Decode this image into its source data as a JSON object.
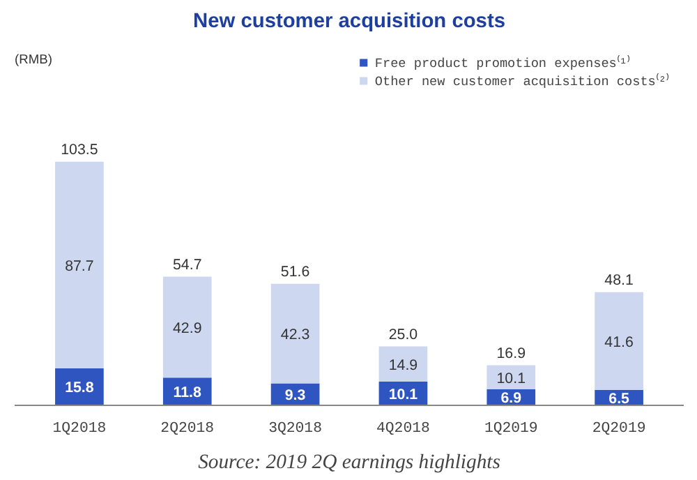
{
  "chart_data": {
    "type": "bar",
    "title": "New customer acquisition costs",
    "categories": [
      "1Q2018",
      "2Q2018",
      "3Q2018",
      "4Q2018",
      "1Q2019",
      "2Q2019"
    ],
    "stacked": true,
    "series": [
      {
        "name": "Free product promotion expenses⁽¹⁾",
        "color": "#2f55c0",
        "values": [
          15.8,
          11.8,
          9.3,
          10.1,
          6.9,
          6.5
        ]
      },
      {
        "name": "Other new customer acquisition costs⁽²⁾",
        "color": "#cdd7f0",
        "values": [
          87.7,
          42.9,
          42.3,
          14.9,
          10.1,
          41.6
        ]
      }
    ],
    "totals": [
      "103.5",
      "54.7",
      "51.6",
      "25.0",
      "16.9",
      "48.1"
    ],
    "data_labels": true,
    "legend": "top right",
    "grid": false,
    "annotations": [
      "(RMB)",
      "Source: 2019 2Q earnings highlights"
    ]
  }
}
